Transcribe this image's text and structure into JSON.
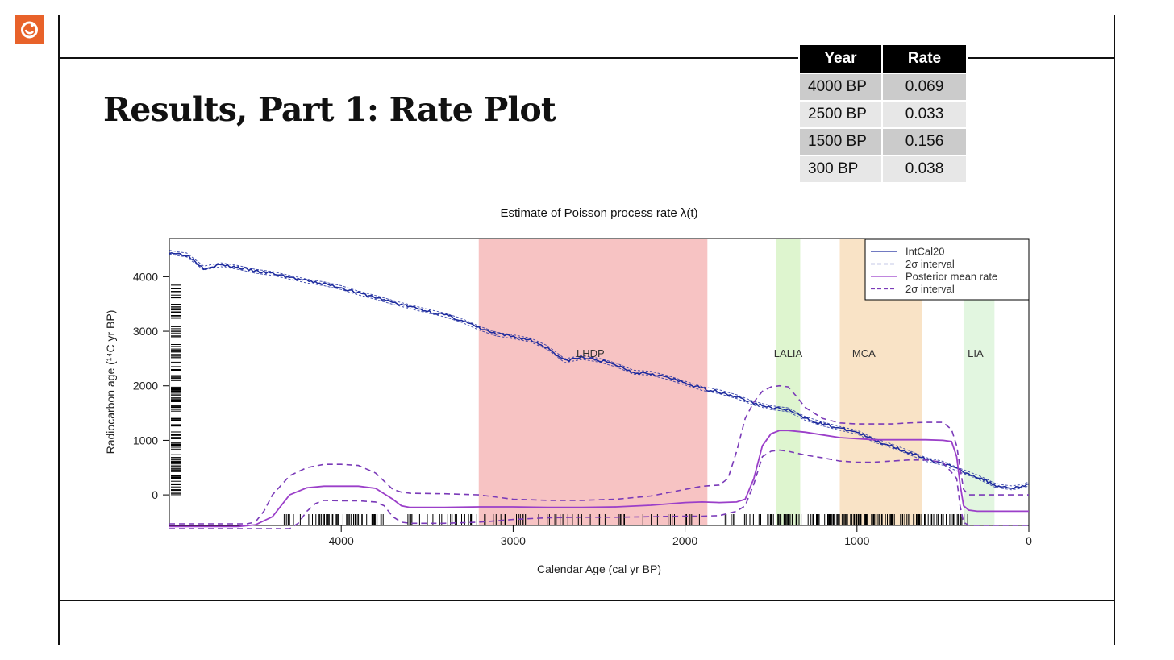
{
  "slide": {
    "title": "Results, Part 1: Rate Plot"
  },
  "rate_table": {
    "headers": [
      "Year",
      "Rate"
    ],
    "rows": [
      {
        "year": "4000 BP",
        "rate": "0.069"
      },
      {
        "year": "2500 BP",
        "rate": "0.033"
      },
      {
        "year": "1500 BP",
        "rate": "0.156"
      },
      {
        "year": "300 BP",
        "rate": "0.038"
      }
    ]
  },
  "colors": {
    "logo": "#e8622a",
    "intcal": "#1c2a9e",
    "rate_line": "#9b3fc9",
    "rate_interval": "#7a3ab8",
    "lhdp_band": "#f7c3c3",
    "lalia_band": "#def5cf",
    "mca_band": "#f9e3c6",
    "lia_band": "#e2f6e0"
  },
  "chart_data": {
    "type": "line",
    "title": "Estimate of Poisson process rate λ(t)",
    "xlabel": "Calendar Age (cal yr BP)",
    "ylabel": "Radiocarbon age (¹⁴C yr BP)",
    "x_reversed": true,
    "xlim": [
      5000,
      0
    ],
    "ylim": [
      -560,
      4700
    ],
    "x_ticks": [
      "4000",
      "3000",
      "2000",
      "1000",
      "0"
    ],
    "y_ticks": [
      "4000",
      "3000",
      "2000",
      "1000",
      "0"
    ],
    "legend": {
      "position": "top-right",
      "entries": [
        "IntCal20",
        "2σ interval",
        "Posterior mean rate",
        "2σ interval"
      ]
    },
    "bands": [
      {
        "label": "LHDP",
        "from": 3200,
        "to": 1870
      },
      {
        "label": "LALIA",
        "from": 1470,
        "to": 1330
      },
      {
        "label": "MCA",
        "from": 1100,
        "to": 620
      },
      {
        "label": "LIA",
        "from": 380,
        "to": 200
      }
    ],
    "series": [
      {
        "name": "IntCal20",
        "x": [
          5000,
          4950,
          4900,
          4800,
          4700,
          4600,
          4500,
          4400,
          4300,
          4200,
          4100,
          4000,
          3900,
          3800,
          3700,
          3600,
          3500,
          3400,
          3300,
          3200,
          3100,
          3000,
          2900,
          2800,
          2700,
          2600,
          2500,
          2400,
          2300,
          2200,
          2100,
          2000,
          1900,
          1800,
          1700,
          1600,
          1500,
          1400,
          1300,
          1200,
          1100,
          1000,
          900,
          800,
          700,
          600,
          500,
          400,
          300,
          250,
          200,
          150,
          100,
          50,
          0
        ],
        "y": [
          4450,
          4420,
          4400,
          4160,
          4220,
          4170,
          4100,
          4060,
          3990,
          3920,
          3870,
          3800,
          3700,
          3620,
          3530,
          3450,
          3370,
          3300,
          3200,
          3060,
          2950,
          2900,
          2840,
          2700,
          2460,
          2520,
          2470,
          2380,
          2250,
          2230,
          2150,
          2050,
          1950,
          1890,
          1800,
          1680,
          1600,
          1560,
          1400,
          1300,
          1220,
          1150,
          1000,
          900,
          780,
          650,
          580,
          450,
          330,
          260,
          180,
          150,
          130,
          150,
          200
        ]
      },
      {
        "name": "Posterior mean rate",
        "x": [
          5000,
          4600,
          4500,
          4400,
          4300,
          4200,
          4100,
          4000,
          3900,
          3800,
          3700,
          3650,
          3600,
          3400,
          3200,
          3000,
          2800,
          2600,
          2400,
          2200,
          2000,
          1900,
          1800,
          1700,
          1650,
          1600,
          1550,
          1500,
          1450,
          1400,
          1300,
          1200,
          1100,
          1000,
          900,
          800,
          700,
          600,
          500,
          450,
          420,
          400,
          380,
          350,
          300,
          200,
          100,
          0
        ],
        "y": [
          -580,
          -580,
          -550,
          -400,
          0,
          130,
          160,
          160,
          160,
          120,
          -80,
          -200,
          -230,
          -230,
          -220,
          -220,
          -230,
          -230,
          -220,
          -190,
          -140,
          -130,
          -140,
          -130,
          -80,
          300,
          900,
          1120,
          1180,
          1180,
          1150,
          1100,
          1050,
          1030,
          1010,
          1010,
          1010,
          1010,
          1000,
          980,
          700,
          200,
          -200,
          -280,
          -300,
          -300,
          -300,
          -300
        ]
      },
      {
        "name": "2σ interval (rate, upper)",
        "x": [
          5000,
          4550,
          4500,
          4450,
          4400,
          4300,
          4200,
          4100,
          4000,
          3900,
          3800,
          3700,
          3650,
          3600,
          3400,
          3200,
          3000,
          2800,
          2600,
          2400,
          2200,
          2000,
          1900,
          1800,
          1750,
          1700,
          1650,
          1600,
          1550,
          1500,
          1450,
          1400,
          1350,
          1300,
          1200,
          1100,
          1000,
          900,
          800,
          700,
          600,
          500,
          450,
          420,
          400,
          380,
          350,
          300,
          200,
          100,
          0
        ],
        "y": [
          -530,
          -530,
          -500,
          -300,
          0,
          350,
          500,
          560,
          560,
          540,
          400,
          100,
          50,
          30,
          20,
          0,
          -80,
          -100,
          -100,
          -80,
          -20,
          100,
          160,
          180,
          300,
          800,
          1400,
          1700,
          1900,
          1980,
          2000,
          1980,
          1800,
          1600,
          1400,
          1320,
          1300,
          1300,
          1300,
          1320,
          1330,
          1330,
          1200,
          900,
          500,
          100,
          0,
          0,
          0,
          0,
          0
        ]
      },
      {
        "name": "2σ interval (rate, lower)",
        "x": [
          5000,
          4300,
          4250,
          4200,
          4150,
          4100,
          4000,
          3900,
          3800,
          3750,
          3700,
          3650,
          3600,
          3400,
          3200,
          3000,
          2800,
          2600,
          2400,
          2200,
          2000,
          1900,
          1800,
          1700,
          1650,
          1600,
          1550,
          1500,
          1450,
          1400,
          1300,
          1200,
          1100,
          1000,
          900,
          800,
          700,
          600,
          500,
          420,
          400,
          380,
          350,
          300,
          250,
          200,
          100,
          0
        ],
        "y": [
          -620,
          -620,
          -520,
          -300,
          -160,
          -100,
          -110,
          -110,
          -130,
          -200,
          -400,
          -500,
          -520,
          -520,
          -500,
          -450,
          -420,
          -410,
          -410,
          -400,
          -390,
          -390,
          -380,
          -300,
          -200,
          200,
          700,
          800,
          820,
          800,
          730,
          680,
          620,
          600,
          600,
          620,
          640,
          640,
          600,
          300,
          -200,
          -500,
          -560,
          -560,
          -560,
          -560,
          -560,
          -560
        ]
      }
    ]
  }
}
